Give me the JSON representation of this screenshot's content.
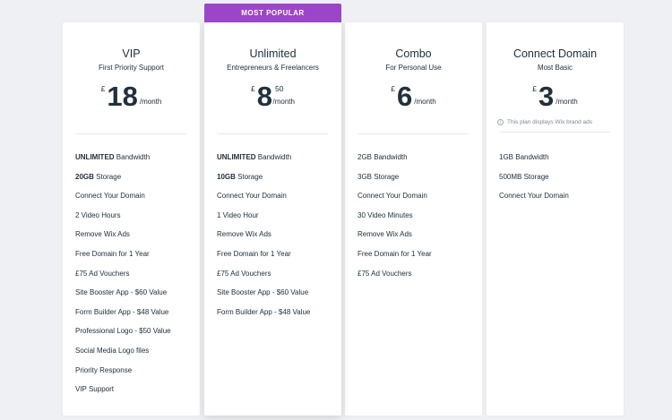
{
  "ribbon": "MOST POPULAR",
  "plans": [
    {
      "name": "VIP",
      "subtitle": "First Priority Support",
      "currency": "£",
      "price": "18",
      "cents": "",
      "per": "/month",
      "note": "",
      "features": [
        {
          "bold": "UNLIMITED",
          "text": " Bandwidth"
        },
        {
          "bold": "20GB",
          "text": " Storage"
        },
        {
          "bold": "",
          "text": "Connect Your Domain"
        },
        {
          "bold": "",
          "text": "2 Video Hours"
        },
        {
          "bold": "",
          "text": "Remove Wix Ads"
        },
        {
          "bold": "",
          "text": "Free Domain for 1 Year"
        },
        {
          "bold": "",
          "text": "£75 Ad Vouchers"
        },
        {
          "bold": "",
          "text": "Site Booster App - $60 Value"
        },
        {
          "bold": "",
          "text": "Form Builder App - $48 Value"
        },
        {
          "bold": "",
          "text": "Professional Logo - $50 Value"
        },
        {
          "bold": "",
          "text": "Social Media Logo files"
        },
        {
          "bold": "",
          "text": "Priority Response"
        },
        {
          "bold": "",
          "text": "VIP Support"
        }
      ]
    },
    {
      "name": "Unlimited",
      "subtitle": "Entrepreneurs & Freelancers",
      "currency": "£",
      "price": "8",
      "cents": "50",
      "per": "/month",
      "note": "",
      "features": [
        {
          "bold": "UNLIMITED",
          "text": " Bandwidth"
        },
        {
          "bold": "10GB",
          "text": " Storage"
        },
        {
          "bold": "",
          "text": "Connect Your Domain"
        },
        {
          "bold": "",
          "text": "1 Video Hour"
        },
        {
          "bold": "",
          "text": "Remove Wix Ads"
        },
        {
          "bold": "",
          "text": "Free Domain for 1 Year"
        },
        {
          "bold": "",
          "text": "£75 Ad Vouchers"
        },
        {
          "bold": "",
          "text": "Site Booster App - $60 Value"
        },
        {
          "bold": "",
          "text": "Form Builder App - $48 Value"
        }
      ]
    },
    {
      "name": "Combo",
      "subtitle": "For Personal Use",
      "currency": "£",
      "price": "6",
      "cents": "",
      "per": "/month",
      "note": "",
      "features": [
        {
          "bold": "",
          "text": "2GB Bandwidth"
        },
        {
          "bold": "",
          "text": "3GB Storage"
        },
        {
          "bold": "",
          "text": "Connect Your Domain"
        },
        {
          "bold": "",
          "text": "30 Video Minutes"
        },
        {
          "bold": "",
          "text": "Remove Wix Ads"
        },
        {
          "bold": "",
          "text": "Free Domain for 1 Year"
        },
        {
          "bold": "",
          "text": "£75 Ad Vouchers"
        }
      ]
    },
    {
      "name": "Connect Domain",
      "subtitle": "Most Basic",
      "currency": "£",
      "price": "3",
      "cents": "",
      "per": "/month",
      "note": "This plan displays Wix brand ads",
      "features": [
        {
          "bold": "",
          "text": "1GB Bandwidth"
        },
        {
          "bold": "",
          "text": "500MB Storage"
        },
        {
          "bold": "",
          "text": "Connect Your Domain"
        }
      ]
    }
  ]
}
